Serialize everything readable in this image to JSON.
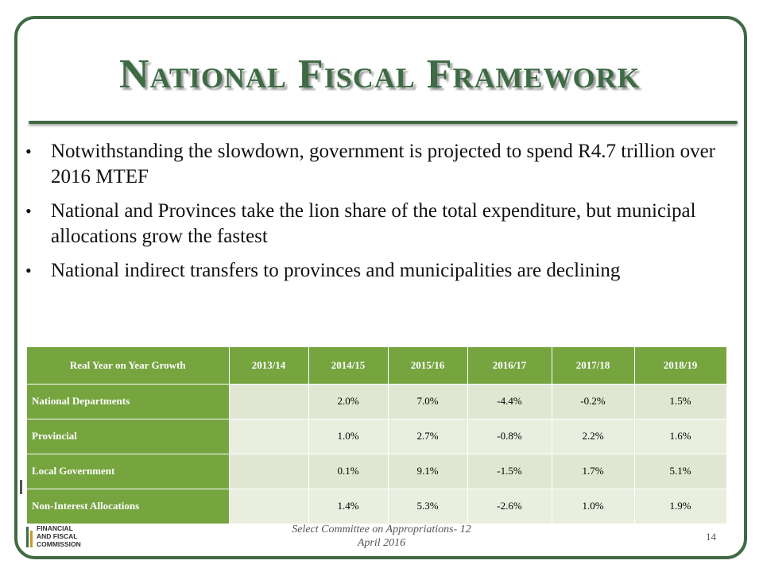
{
  "slide": {
    "title": "National Fiscal Framework",
    "bullets": [
      "Notwithstanding the slowdown, government is projected to spend R4.7 trillion over 2016 MTEF",
      "National and Provinces take the lion share of the total expenditure, but municipal allocations grow the fastest",
      "National indirect transfers to provinces and municipalities are declining"
    ],
    "bullet_glyph": "•"
  },
  "table": {
    "headers": [
      "Real Year on Year Growth",
      "2013/14",
      "2014/15",
      "2015/16",
      "2016/17",
      "2017/18",
      "2018/19"
    ],
    "rows": [
      {
        "label": "National Departments",
        "values": [
          "",
          "2.0%",
          "7.0%",
          "-4.4%",
          "-0.2%",
          "1.5%"
        ]
      },
      {
        "label": "Provincial",
        "values": [
          "",
          "1.0%",
          "2.7%",
          "-0.8%",
          "2.2%",
          "1.6%"
        ]
      },
      {
        "label": "Local Government",
        "values": [
          "",
          "0.1%",
          "9.1%",
          "-1.5%",
          "1.7%",
          "5.1%"
        ]
      },
      {
        "label": "Non-Interest Allocations",
        "values": [
          "",
          "1.4%",
          "5.3%",
          "-2.6%",
          "1.0%",
          "1.9%"
        ]
      }
    ]
  },
  "footer": {
    "logo_lines": [
      "FINANCIAL",
      "AND FISCAL",
      "COMMISSION"
    ],
    "caption_line1": "Select Committee on Appropriations- 12",
    "caption_line2": "April 2016",
    "page_number": "14"
  },
  "colors": {
    "frame": "#3f6a45",
    "title": "#3d6b44",
    "table_header": "#76a43f",
    "table_cell": "#e9eedf"
  }
}
